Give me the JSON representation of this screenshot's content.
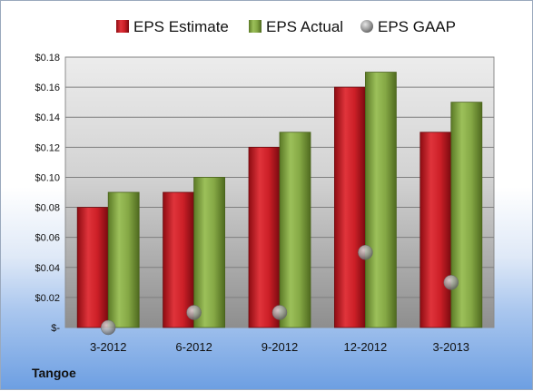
{
  "company": "Tangoe",
  "colors": {
    "estimate": "#c8202a",
    "actual": "#86a845",
    "gaap": "#9a9a9a"
  },
  "chart_data": {
    "type": "bar",
    "categories": [
      "3-2012",
      "6-2012",
      "9-2012",
      "12-2012",
      "3-2013"
    ],
    "series": [
      {
        "name": "EPS Estimate",
        "type": "bar",
        "values": [
          0.08,
          0.09,
          0.12,
          0.16,
          0.13
        ]
      },
      {
        "name": "EPS Actual",
        "type": "bar",
        "values": [
          0.09,
          0.1,
          0.13,
          0.17,
          0.15
        ]
      },
      {
        "name": "EPS GAAP",
        "type": "scatter",
        "values": [
          0.0,
          0.01,
          0.01,
          0.05,
          0.03
        ]
      }
    ],
    "ylim": [
      0,
      0.18
    ],
    "yticks": [
      {
        "value": 0.18,
        "label": "$0.18"
      },
      {
        "value": 0.16,
        "label": "$0.16"
      },
      {
        "value": 0.14,
        "label": "$0.14"
      },
      {
        "value": 0.12,
        "label": "$0.12"
      },
      {
        "value": 0.1,
        "label": "$0.10"
      },
      {
        "value": 0.08,
        "label": "$0.08"
      },
      {
        "value": 0.06,
        "label": "$0.06"
      },
      {
        "value": 0.04,
        "label": "$0.04"
      },
      {
        "value": 0.02,
        "label": "$0.02"
      },
      {
        "value": 0,
        "label": "$-"
      }
    ],
    "grid": true,
    "legend_position": "top"
  }
}
